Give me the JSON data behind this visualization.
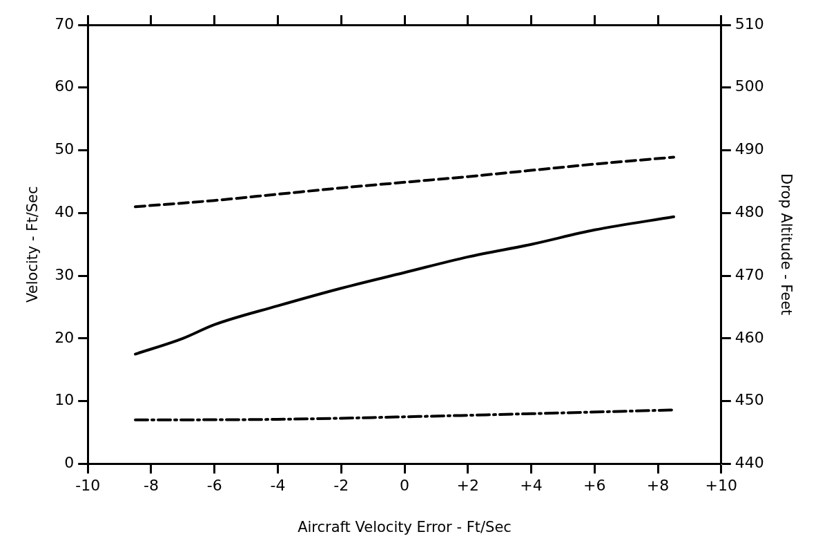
{
  "chart_data": {
    "type": "line",
    "xlabel": "Aircraft Velocity Error - Ft/Sec",
    "ylabel": "Velocity - Ft/Sec",
    "y2label": "Drop Altitude - Feet",
    "xlim": [
      -10,
      10
    ],
    "xticks": [
      -10,
      -8,
      -6,
      -4,
      -2,
      0,
      {
        "value": 2,
        "label": "+2"
      },
      {
        "value": 4,
        "label": "+4"
      },
      {
        "value": 6,
        "label": "+6"
      },
      {
        "value": 8,
        "label": "+8"
      },
      {
        "value": 10,
        "label": "+10"
      }
    ],
    "ylim": [
      0,
      70
    ],
    "yticks": [
      0,
      10,
      20,
      30,
      40,
      50,
      60,
      70
    ],
    "y2lim": [
      440,
      510
    ],
    "y2ticks": [
      440,
      450,
      460,
      470,
      480,
      490,
      500,
      510
    ],
    "grid": false,
    "legend": false,
    "marker": "none",
    "series": [
      {
        "color": "#000000",
        "line_style": "dashed",
        "x": [
          -8.5,
          -6,
          -4,
          -2,
          0,
          2,
          4,
          6,
          8.5
        ],
        "values": [
          41,
          42,
          43,
          44,
          44.9,
          45.8,
          46.8,
          47.8,
          48.9
        ]
      },
      {
        "color": "#000000",
        "line_style": "solid",
        "x": [
          -8.5,
          -7,
          -6,
          -4,
          -2,
          0,
          2,
          4,
          6,
          8.5
        ],
        "values": [
          17.5,
          20,
          22.2,
          25.2,
          28,
          30.5,
          33,
          35,
          37.3,
          39.4
        ]
      },
      {
        "color": "#000000",
        "line_style": "dashdot",
        "x": [
          -8.5,
          -4,
          0,
          4,
          8.5
        ],
        "values": [
          7,
          7.1,
          7.5,
          8,
          8.6
        ]
      }
    ]
  }
}
